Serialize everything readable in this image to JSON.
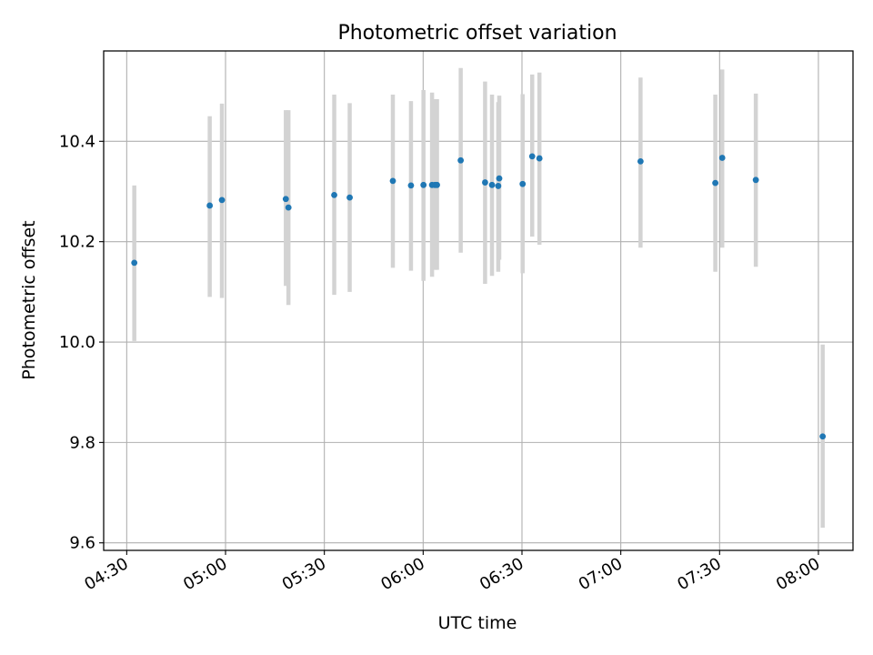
{
  "chart_data": {
    "type": "scatter",
    "title": "Photometric offset variation",
    "xlabel": "UTC time",
    "ylabel": "Photometric offset",
    "grid": true,
    "x_ticks": [
      "04:30",
      "05:00",
      "05:30",
      "06:00",
      "06:30",
      "07:00",
      "07:30",
      "08:00"
    ],
    "x_tick_values": [
      270,
      300,
      330,
      360,
      390,
      420,
      450,
      480
    ],
    "xlim": [
      263,
      490.5
    ],
    "y_ticks": [
      "9.6",
      "9.8",
      "10.0",
      "10.2",
      "10.4"
    ],
    "y_tick_values": [
      9.6,
      9.8,
      10.0,
      10.2,
      10.4
    ],
    "ylim": [
      9.585,
      10.58
    ],
    "colors": {
      "point": "#1f77b4",
      "errorbar": "#d3d3d3",
      "grid": "#b0b0b0",
      "axes": "#000000"
    },
    "x_unit": "minutes after 00:00 UTC",
    "x": [
      272.3,
      295.2,
      298.9,
      318.3,
      319.1,
      333.0,
      337.7,
      350.8,
      356.3,
      360.1,
      362.7,
      363.6,
      364.2,
      371.4,
      378.8,
      380.9,
      382.8,
      383.1,
      390.2,
      393.1,
      395.3,
      426.0,
      448.7,
      450.8,
      461.0,
      481.3
    ],
    "y": [
      10.158,
      10.272,
      10.283,
      10.285,
      10.268,
      10.293,
      10.288,
      10.321,
      10.312,
      10.313,
      10.313,
      10.313,
      10.313,
      10.362,
      10.318,
      10.313,
      10.311,
      10.326,
      10.315,
      10.37,
      10.366,
      10.36,
      10.317,
      10.367,
      10.323,
      9.812
    ],
    "y_err_low": [
      10.002,
      10.09,
      10.088,
      10.112,
      10.074,
      10.094,
      10.1,
      10.148,
      10.142,
      10.122,
      10.13,
      10.144,
      10.144,
      10.178,
      10.116,
      10.132,
      10.14,
      10.164,
      10.137,
      10.21,
      10.194,
      10.188,
      10.14,
      10.188,
      10.15,
      9.63
    ],
    "y_err_high": [
      10.312,
      10.45,
      10.475,
      10.462,
      10.462,
      10.493,
      10.476,
      10.493,
      10.48,
      10.502,
      10.497,
      10.484,
      10.484,
      10.546,
      10.519,
      10.493,
      10.478,
      10.491,
      10.494,
      10.533,
      10.537,
      10.527,
      10.493,
      10.543,
      10.495,
      9.995
    ]
  }
}
